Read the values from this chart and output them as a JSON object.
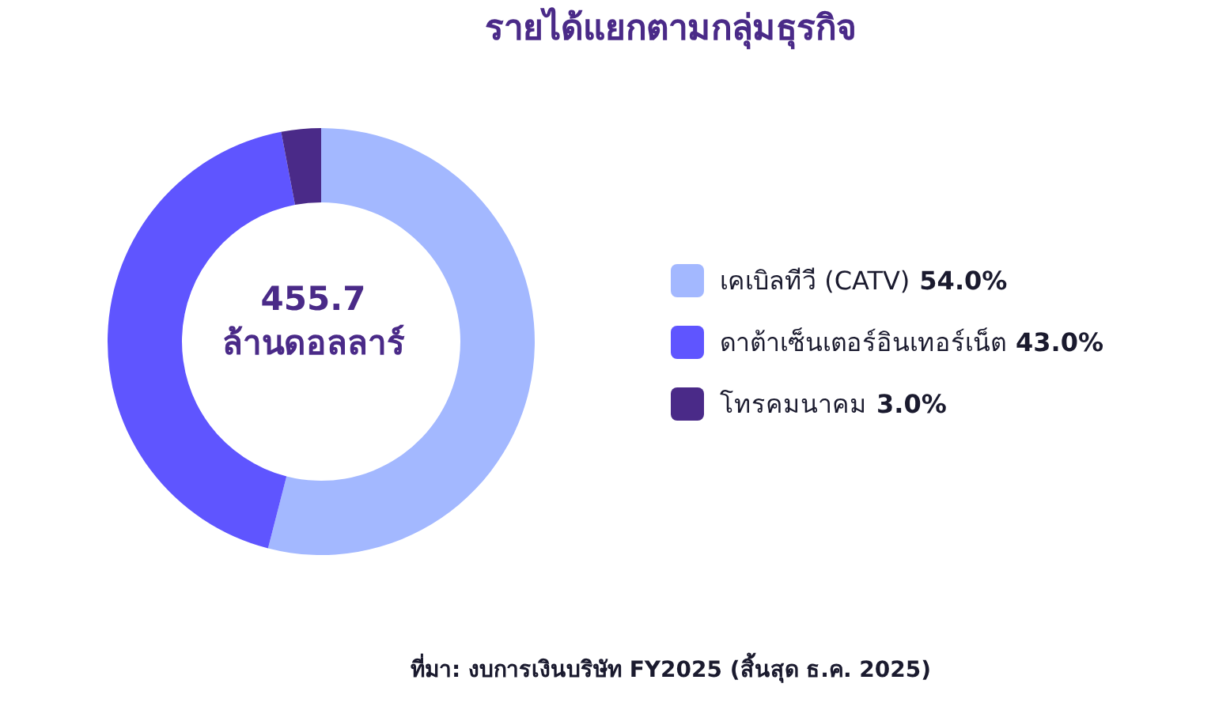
{
  "chart_data": {
    "type": "donut",
    "title": "รายได้แยกตามกลุ่มธุรกิจ",
    "categories": [
      "เคเบิลทีวี (CATV)",
      "ดาต้าเซ็นเตอร์อินเทอร์เน็ต",
      "โทรคมนาคม"
    ],
    "values": [
      54.0,
      43.0,
      3.0
    ],
    "colors": [
      "#a3b8ff",
      "#5f55ff",
      "#4a2a88"
    ],
    "value_labels": [
      "54.0%",
      "43.0%",
      "3.0%"
    ],
    "legend": "right",
    "annotations": [
      "455.7",
      "ล้านดอลลาร์",
      "ที่มา: งบการเงินบริษัท FY2025 (สิ้นสุด ธ.ค. 2025)"
    ]
  }
}
